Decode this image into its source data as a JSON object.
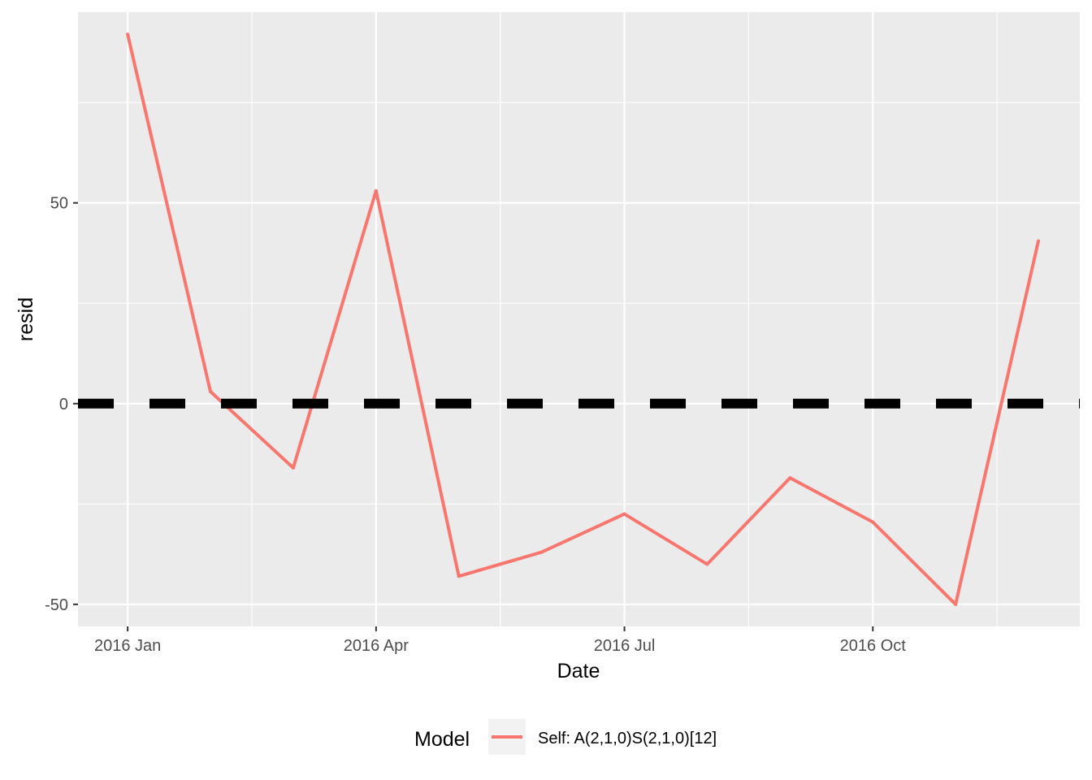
{
  "chart_data": {
    "type": "line",
    "title": "",
    "xlabel": "Date",
    "ylabel": "resid",
    "x_ticks": [
      "2016 Jan",
      "2016 Apr",
      "2016 Jul",
      "2016 Oct"
    ],
    "x_tick_months": [
      0,
      3,
      6,
      9
    ],
    "y_ticks": [
      -50,
      0,
      50
    ],
    "ylim": [
      -55.5,
      97.5
    ],
    "xlim_months": [
      -0.6,
      11.5
    ],
    "series": [
      {
        "name": "Self: A(2,1,0)S(2,1,0)[12]",
        "color": "#F8766D",
        "x_months": [
          0,
          1,
          2,
          3,
          4,
          5,
          6,
          7,
          8,
          9,
          10,
          11
        ],
        "values": [
          92,
          3,
          -16,
          53,
          -43,
          -37,
          -27.5,
          -40,
          -18.5,
          -29.5,
          -50,
          40.5
        ]
      }
    ],
    "reference_line": {
      "y": 0,
      "style": "dashed",
      "color": "#000000"
    },
    "legend": {
      "title": "Model",
      "position": "bottom",
      "entries": [
        "Self: A(2,1,0)S(2,1,0)[12]"
      ]
    },
    "colors": {
      "panel_background": "#EBEBEB",
      "grid": "#FFFFFF",
      "series": "#F8766D",
      "legend_key_background": "#F2F2F2"
    }
  }
}
